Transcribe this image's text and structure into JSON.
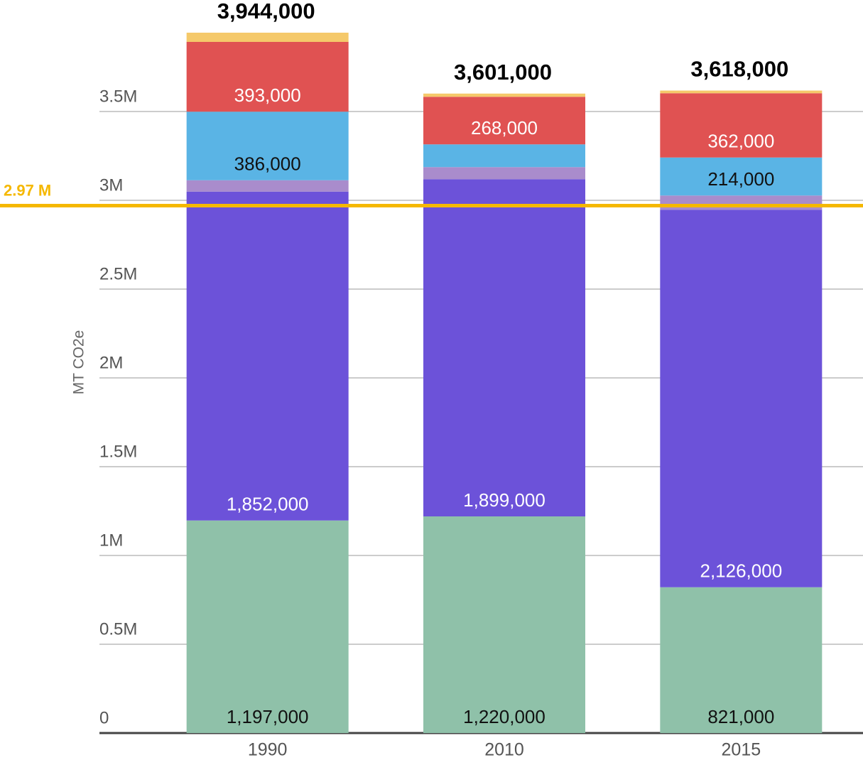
{
  "chart_data": {
    "type": "stacked_bar",
    "y_label": "MT CO2e",
    "categories": [
      "1990",
      "2010",
      "2015"
    ],
    "series": [
      {
        "color": "#8fc1a9",
        "label_color": "#111111",
        "values": [
          1197000,
          1220000,
          821000
        ],
        "value_labels": [
          "1,197,000",
          "1,220,000",
          "821,000"
        ]
      },
      {
        "color": "#6c52d9",
        "label_color": "#ffffff",
        "values": [
          1852000,
          1899000,
          2126000
        ],
        "value_labels": [
          "1,852,000",
          "1,899,000",
          "2,126,000"
        ]
      },
      {
        "color": "#a98ccc",
        "label_color": "#111111",
        "values": [
          64000,
          68000,
          80000
        ],
        "value_labels": [
          null,
          null,
          null
        ]
      },
      {
        "color": "#5ab4e5",
        "label_color": "#111111",
        "values": [
          386000,
          128000,
          214000
        ],
        "value_labels": [
          "386,000",
          null,
          "214,000"
        ]
      },
      {
        "color": "#e05252",
        "label_color": "#ffffff",
        "values": [
          393000,
          268000,
          362000
        ],
        "value_labels": [
          "393,000",
          "268,000",
          "362,000"
        ]
      },
      {
        "color": "#f5c96a",
        "label_color": "#111111",
        "values": [
          52000,
          18000,
          15000
        ],
        "value_labels": [
          null,
          null,
          null
        ]
      }
    ],
    "totals": [
      3944000,
      3601000,
      3618000
    ],
    "total_labels": [
      "3,944,000",
      "3,601,000",
      "3,618,000"
    ],
    "reference_line": {
      "value": 2970000,
      "label": "2.97 M",
      "color": "#f5b800"
    },
    "ylim": [
      0,
      4000000
    ],
    "yticks": [
      0,
      {
        "value": 500000,
        "label": "0.5M"
      },
      {
        "value": 1000000,
        "label": "1M"
      },
      {
        "value": 1500000,
        "label": "1.5M"
      },
      {
        "value": 2000000,
        "label": "2M"
      },
      {
        "value": 2500000,
        "label": "2.5M"
      },
      {
        "value": 3000000,
        "label": "3M"
      },
      {
        "value": 3500000,
        "label": "3.5M"
      }
    ],
    "grid": true
  }
}
